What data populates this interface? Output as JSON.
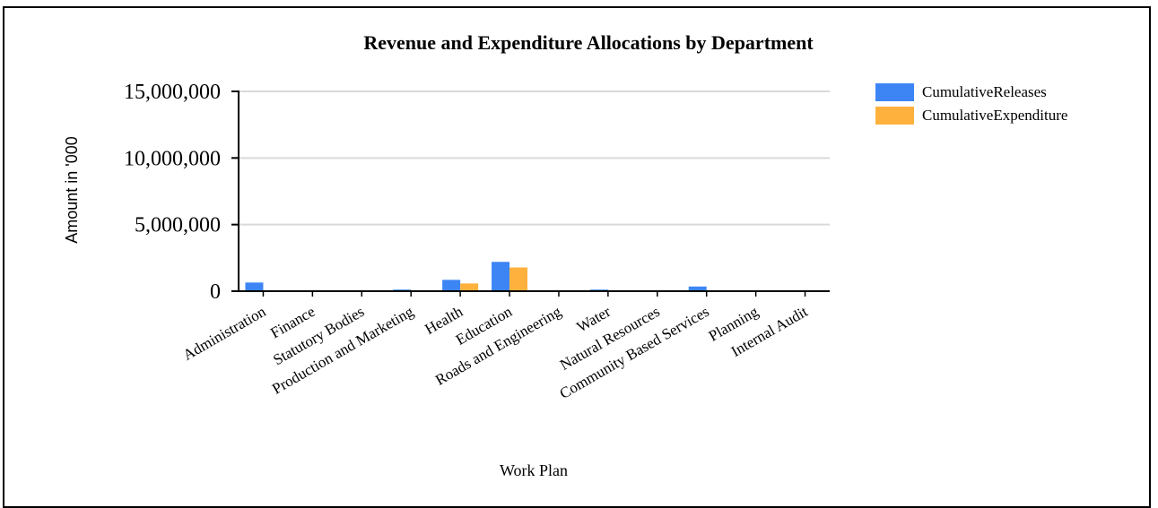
{
  "chart_data": {
    "type": "bar",
    "title": "Revenue and Expenditure Allocations by Department",
    "xlabel": "Work Plan",
    "ylabel": "Amount in '000",
    "ylim": [
      0,
      15000000
    ],
    "yticks": [
      0,
      5000000,
      10000000,
      15000000
    ],
    "ytick_labels": [
      "0",
      "5,000,000",
      "10,000,000",
      "15,000,000"
    ],
    "grid": true,
    "legend_position": "top-right",
    "categories": [
      "Administration",
      "Finance",
      "Statutory Bodies",
      "Production and Marketing",
      "Health",
      "Education",
      "Roads and Engineering",
      "Water",
      "Natural Resources",
      "Community Based Services",
      "Planning",
      "Internal Audit"
    ],
    "series": [
      {
        "name": "CumulativeReleases",
        "color": "#3d85f5",
        "values": [
          650000,
          40000,
          30000,
          120000,
          850000,
          2200000,
          50000,
          120000,
          30000,
          350000,
          30000,
          30000
        ]
      },
      {
        "name": "CumulativeExpenditure",
        "color": "#ffb13d",
        "values": [
          20000,
          10000,
          10000,
          30000,
          580000,
          1780000,
          10000,
          20000,
          10000,
          50000,
          10000,
          10000
        ]
      }
    ]
  }
}
